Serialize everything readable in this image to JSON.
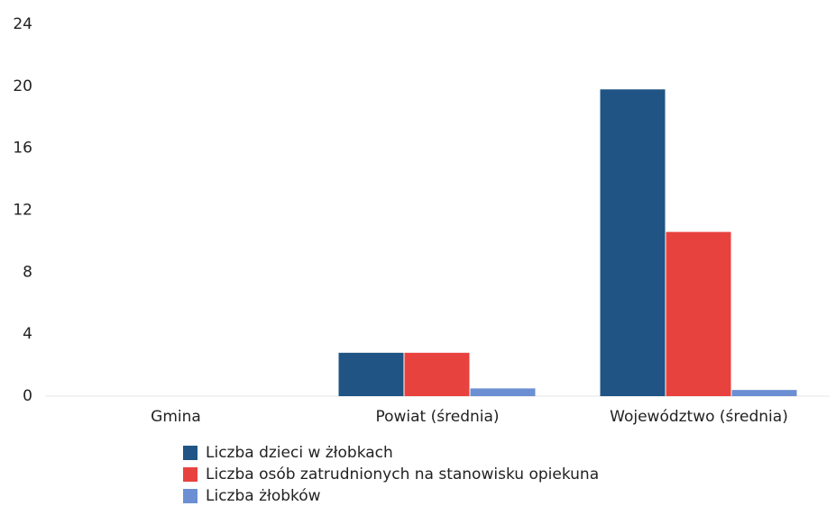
{
  "chart_data": {
    "type": "bar",
    "categories": [
      "Gmina",
      "Powiat (średnia)",
      "Województwo (średnia)"
    ],
    "series": [
      {
        "name": "Liczba dzieci w żłobkach",
        "color": "#1f5484",
        "values": [
          0,
          2.8,
          19.8
        ]
      },
      {
        "name": "Liczba osób zatrudnionych na stanowisku opiekuna",
        "color": "#e8423f",
        "values": [
          0,
          2.8,
          10.6
        ]
      },
      {
        "name": "Liczba żłobków",
        "color": "#6b8fd2",
        "values": [
          0,
          0.5,
          0.4
        ]
      }
    ],
    "ylim": [
      0,
      24
    ],
    "yticks": [
      0,
      4,
      8,
      12,
      16,
      20,
      24
    ],
    "grid": false,
    "legend": "bottom"
  }
}
